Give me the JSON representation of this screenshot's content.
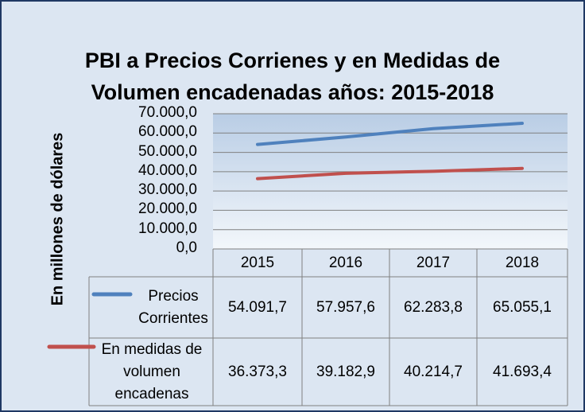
{
  "chart_data": {
    "type": "line",
    "title": "PBI a Precios Corrienes y en Medidas de Volumen encadenadas años: 2015-2018",
    "y_label": "En millones de dólares",
    "categories": [
      "2015",
      "2016",
      "2017",
      "2018"
    ],
    "series": [
      {
        "name": "Precios Corrientes",
        "color": "#4f81bd",
        "values": [
          54091.7,
          57957.6,
          62283.8,
          65055.1
        ],
        "value_labels": [
          "54.091,7",
          "57.957,6",
          "62.283,8",
          "65.055,1"
        ]
      },
      {
        "name": "En medidas de volumen encadenas",
        "color": "#c0504d",
        "values": [
          36373.3,
          39182.9,
          40214.7,
          41693.4
        ],
        "value_labels": [
          "36.373,3",
          "39.182,9",
          "40.214,7",
          "41.693,4"
        ]
      }
    ],
    "ylim": [
      0,
      70000
    ],
    "yticks": [
      {
        "value": 0,
        "label": "0,0"
      },
      {
        "value": 10000,
        "label": "10.000,0"
      },
      {
        "value": 20000,
        "label": "20.000,0"
      },
      {
        "value": 30000,
        "label": "30.000,0"
      },
      {
        "value": 40000,
        "label": "40.000,0"
      },
      {
        "value": 50000,
        "label": "50.000,0"
      },
      {
        "value": 60000,
        "label": "60.000,0"
      },
      {
        "value": 70000,
        "label": "70.000,0"
      }
    ],
    "grid": true
  }
}
